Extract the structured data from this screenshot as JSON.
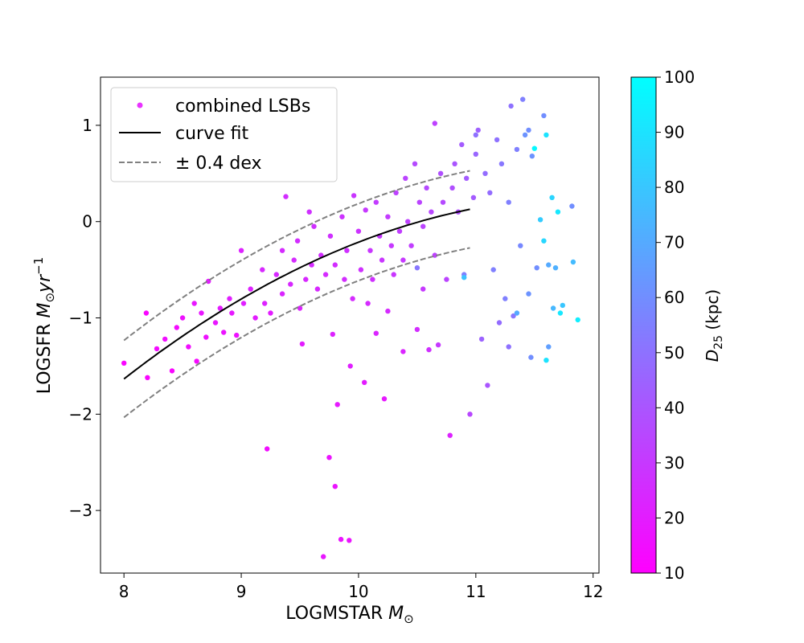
{
  "chart_data": {
    "type": "scatter",
    "xlabel": "LOGMSTAR",
    "xlabel_unit": "M",
    "xlabel_sub": "⊙",
    "ylabel": "LOGSFR",
    "ylabel_unit_m": "M",
    "ylabel_unit_sub": "⊙",
    "ylabel_unit_yr": "yr",
    "ylabel_unit_sup": "−1",
    "xlim": [
      7.8,
      12.05
    ],
    "ylim": [
      -3.65,
      1.5
    ],
    "xticks": [
      8,
      9,
      10,
      11,
      12
    ],
    "xtick_labels": [
      "8",
      "9",
      "10",
      "11",
      "12"
    ],
    "yticks": [
      -3,
      -2,
      -1,
      0,
      1
    ],
    "ytick_labels": [
      "−3",
      "−2",
      "−1",
      "0",
      "1"
    ],
    "grid": false,
    "legend_position": "top-left",
    "legend": [
      {
        "label": "combined LSBs",
        "marker": "dot",
        "color": "#e933ff"
      },
      {
        "label": "curve fit",
        "marker": "solid-line",
        "color": "#000000"
      },
      {
        "label": "± 0.4 dex",
        "marker": "dashed-line",
        "color": "#808080"
      }
    ],
    "colorbar": {
      "label_main": "D",
      "label_sub": "25",
      "label_unit": "(kpc)",
      "range": [
        10,
        100
      ],
      "ticks": [
        10,
        20,
        30,
        40,
        50,
        60,
        70,
        80,
        90,
        100
      ],
      "tick_labels": [
        "10",
        "20",
        "30",
        "40",
        "50",
        "60",
        "70",
        "80",
        "90",
        "100"
      ],
      "colormap": "cool",
      "color_low": "#ff00ff",
      "color_high": "#00ffff"
    },
    "curve_fit": {
      "x_range": [
        8.0,
        10.95
      ],
      "anchor_points": [
        [
          8.0,
          -1.63
        ],
        [
          9.0,
          -0.82
        ],
        [
          9.5,
          -0.47
        ],
        [
          10.0,
          -0.2
        ],
        [
          10.5,
          -0.02
        ],
        [
          10.95,
          0.13
        ]
      ],
      "offset_dex": 0.4
    },
    "series": [
      {
        "name": "combined LSBs",
        "points_xy_d25": [
          [
            8.0,
            -1.47,
            12
          ],
          [
            8.19,
            -0.95,
            12
          ],
          [
            8.2,
            -1.62,
            12
          ],
          [
            8.28,
            -1.32,
            14
          ],
          [
            8.35,
            -1.22,
            15
          ],
          [
            8.41,
            -1.55,
            12
          ],
          [
            8.45,
            -1.1,
            14
          ],
          [
            8.5,
            -1.0,
            16
          ],
          [
            8.55,
            -1.3,
            15
          ],
          [
            8.6,
            -0.85,
            18
          ],
          [
            8.62,
            -1.45,
            13
          ],
          [
            8.66,
            -0.95,
            18
          ],
          [
            8.7,
            -1.2,
            16
          ],
          [
            8.72,
            -0.62,
            20
          ],
          [
            8.78,
            -1.05,
            18
          ],
          [
            8.82,
            -0.9,
            20
          ],
          [
            8.85,
            -1.15,
            17
          ],
          [
            8.9,
            -0.8,
            21
          ],
          [
            8.92,
            -0.95,
            19
          ],
          [
            8.96,
            -1.18,
            16
          ],
          [
            9.0,
            -0.3,
            22
          ],
          [
            9.02,
            -0.85,
            21
          ],
          [
            9.08,
            -0.7,
            22
          ],
          [
            9.12,
            -1.0,
            20
          ],
          [
            9.18,
            -0.5,
            24
          ],
          [
            9.2,
            -0.85,
            22
          ],
          [
            9.22,
            -2.36,
            15
          ],
          [
            9.25,
            -0.95,
            20
          ],
          [
            9.3,
            -0.55,
            24
          ],
          [
            9.35,
            -0.3,
            25
          ],
          [
            9.35,
            -0.75,
            23
          ],
          [
            9.38,
            0.26,
            26
          ],
          [
            9.42,
            -0.65,
            24
          ],
          [
            9.45,
            -0.4,
            25
          ],
          [
            9.48,
            -0.2,
            26
          ],
          [
            9.5,
            -0.9,
            22
          ],
          [
            9.52,
            -1.27,
            20
          ],
          [
            9.55,
            -0.6,
            24
          ],
          [
            9.58,
            0.1,
            27
          ],
          [
            9.6,
            -0.45,
            25
          ],
          [
            9.62,
            -0.05,
            27
          ],
          [
            9.65,
            -0.7,
            24
          ],
          [
            9.68,
            -0.35,
            26
          ],
          [
            9.7,
            -3.48,
            18
          ],
          [
            9.72,
            -0.55,
            25
          ],
          [
            9.75,
            -2.45,
            17
          ],
          [
            9.76,
            -0.15,
            27
          ],
          [
            9.78,
            -1.17,
            22
          ],
          [
            9.8,
            -2.75,
            17
          ],
          [
            9.8,
            -0.45,
            26
          ],
          [
            9.82,
            -1.9,
            19
          ],
          [
            9.85,
            -3.3,
            17
          ],
          [
            9.86,
            0.05,
            28
          ],
          [
            9.88,
            -0.6,
            26
          ],
          [
            9.9,
            -0.3,
            27
          ],
          [
            9.92,
            -3.31,
            17
          ],
          [
            9.93,
            -1.5,
            21
          ],
          [
            9.95,
            -0.8,
            25
          ],
          [
            9.96,
            0.27,
            29
          ],
          [
            10.0,
            -0.1,
            28
          ],
          [
            10.02,
            -0.5,
            27
          ],
          [
            10.05,
            -1.67,
            20
          ],
          [
            10.06,
            0.12,
            30
          ],
          [
            10.08,
            -0.85,
            25
          ],
          [
            10.1,
            -0.3,
            29
          ],
          [
            10.12,
            -0.6,
            27
          ],
          [
            10.15,
            -1.16,
            23
          ],
          [
            10.15,
            0.2,
            31
          ],
          [
            10.18,
            -0.15,
            30
          ],
          [
            10.2,
            -0.4,
            29
          ],
          [
            10.22,
            -1.84,
            19
          ],
          [
            10.25,
            0.05,
            31
          ],
          [
            10.25,
            -0.93,
            25
          ],
          [
            10.28,
            -0.25,
            30
          ],
          [
            10.3,
            -0.55,
            29
          ],
          [
            10.32,
            0.3,
            33
          ],
          [
            10.35,
            -0.1,
            32
          ],
          [
            10.38,
            -0.4,
            30
          ],
          [
            10.38,
            -1.35,
            23
          ],
          [
            10.4,
            0.45,
            34
          ],
          [
            10.42,
            0.0,
            33
          ],
          [
            10.45,
            -0.25,
            32
          ],
          [
            10.48,
            0.6,
            36
          ],
          [
            10.5,
            -0.48,
            52
          ],
          [
            10.5,
            -1.12,
            26
          ],
          [
            10.52,
            0.2,
            34
          ],
          [
            10.55,
            -0.05,
            34
          ],
          [
            10.55,
            -0.7,
            30
          ],
          [
            10.58,
            0.35,
            36
          ],
          [
            10.6,
            -1.33,
            27
          ],
          [
            10.62,
            0.1,
            35
          ],
          [
            10.65,
            1.02,
            33
          ],
          [
            10.65,
            -0.35,
            33
          ],
          [
            10.68,
            -1.28,
            30
          ],
          [
            10.7,
            0.5,
            38
          ],
          [
            10.72,
            0.2,
            36
          ],
          [
            10.75,
            -0.6,
            34
          ],
          [
            10.78,
            -2.22,
            22
          ],
          [
            10.8,
            0.35,
            38
          ],
          [
            10.82,
            0.6,
            40
          ],
          [
            10.85,
            0.1,
            38
          ],
          [
            10.88,
            0.8,
            42
          ],
          [
            10.9,
            -0.55,
            55
          ],
          [
            10.92,
            0.45,
            42
          ],
          [
            10.95,
            -2.0,
            35
          ],
          [
            10.98,
            0.25,
            42
          ],
          [
            11.0,
            0.7,
            46
          ],
          [
            11.02,
            0.95,
            44
          ],
          [
            11.05,
            -1.22,
            45
          ],
          [
            11.08,
            0.5,
            48
          ],
          [
            11.1,
            -1.7,
            40
          ],
          [
            11.12,
            0.3,
            48
          ],
          [
            11.15,
            -0.5,
            55
          ],
          [
            11.18,
            0.85,
            50
          ],
          [
            11.2,
            -1.05,
            48
          ],
          [
            11.22,
            0.6,
            52
          ],
          [
            11.25,
            -0.8,
            55
          ],
          [
            11.28,
            0.2,
            55
          ],
          [
            11.3,
            1.2,
            50
          ],
          [
            11.32,
            -0.98,
            52
          ],
          [
            11.35,
            0.75,
            55
          ],
          [
            11.38,
            -0.25,
            58
          ],
          [
            11.4,
            1.27,
            55
          ],
          [
            11.42,
            0.9,
            62
          ],
          [
            11.45,
            -0.75,
            62
          ],
          [
            11.47,
            -1.41,
            60
          ],
          [
            11.48,
            0.68,
            62
          ],
          [
            11.5,
            0.76,
            98
          ],
          [
            11.52,
            -0.48,
            60
          ],
          [
            11.55,
            0.02,
            82
          ],
          [
            11.58,
            1.1,
            60
          ],
          [
            11.6,
            0.9,
            90
          ],
          [
            11.62,
            -0.45,
            70
          ],
          [
            11.62,
            -1.3,
            66
          ],
          [
            11.65,
            0.25,
            85
          ],
          [
            11.66,
            -0.9,
            75
          ],
          [
            11.68,
            -0.48,
            72
          ],
          [
            11.7,
            0.1,
            92
          ],
          [
            11.72,
            -0.95,
            92
          ],
          [
            11.74,
            -0.87,
            80
          ],
          [
            11.82,
            0.16,
            60
          ],
          [
            11.83,
            -0.42,
            76
          ],
          [
            11.87,
            -1.02,
            94
          ],
          [
            11.6,
            -1.44,
            90
          ],
          [
            11.58,
            -0.2,
            86
          ],
          [
            10.9,
            -0.58,
            78
          ],
          [
            11.45,
            0.95,
            60
          ],
          [
            11.35,
            -0.95,
            70
          ],
          [
            11.28,
            -1.3,
            50
          ],
          [
            11.0,
            0.9,
            50
          ]
        ]
      }
    ]
  }
}
